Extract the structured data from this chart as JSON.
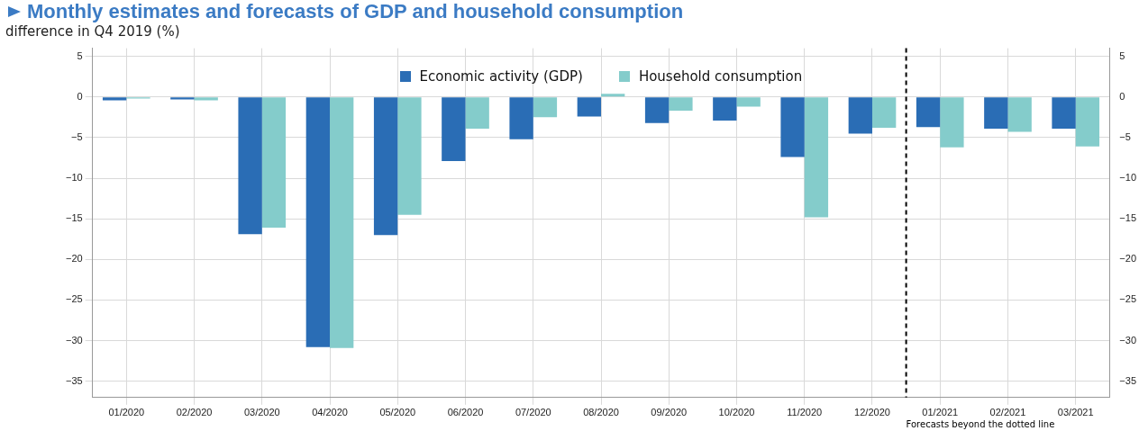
{
  "chart_data": {
    "type": "bar",
    "title": "Monthly estimates and forecasts of GDP and household consumption",
    "ylabel": "difference in Q4 2019 (%)",
    "categories": [
      "01/2020",
      "02/2020",
      "03/2020",
      "04/2020",
      "05/2020",
      "06/2020",
      "07/2020",
      "08/2020",
      "09/2020",
      "10/2020",
      "11/2020",
      "12/2020",
      "01/2021",
      "02/2021",
      "03/2021"
    ],
    "series": [
      {
        "name": "Economic activity (GDP)",
        "color": "#2a6db5",
        "values": [
          -0.4,
          -0.3,
          -16.9,
          -30.8,
          -17.0,
          -7.9,
          -5.2,
          -2.4,
          -3.2,
          -2.9,
          -7.4,
          -4.5,
          -3.7,
          -3.9,
          -3.9
        ]
      },
      {
        "name": "Household consumption",
        "color": "#84cccb",
        "values": [
          -0.2,
          -0.4,
          -16.1,
          -30.9,
          -14.5,
          -3.9,
          -2.5,
          0.4,
          -1.7,
          -1.2,
          -14.8,
          -3.8,
          -6.2,
          -4.3,
          -6.1
        ]
      }
    ],
    "ylim": [
      -37,
      6
    ],
    "yticks": [
      -35,
      -30,
      -25,
      -20,
      -15,
      -10,
      -5,
      0,
      5
    ],
    "y2lim": [
      -37,
      6
    ],
    "y2ticks": [
      -35,
      -30,
      -25,
      -20,
      -15,
      -10,
      -5,
      0,
      5
    ],
    "ref_lines": [
      {
        "axis": "x",
        "value": "01/2021",
        "label": "Forecasts beyond the dotted line",
        "color": "#000000",
        "line_style": "dashed"
      }
    ],
    "grid": true,
    "legend": "top"
  }
}
